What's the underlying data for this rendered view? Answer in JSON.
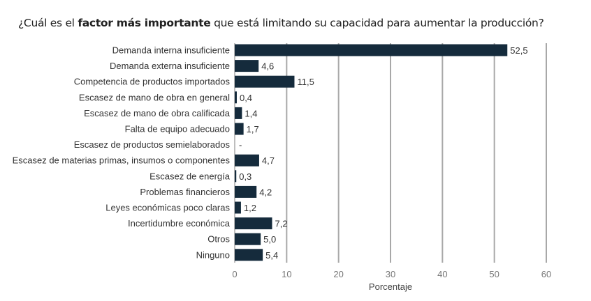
{
  "chart_data": {
    "type": "bar",
    "orientation": "horizontal",
    "title_parts": {
      "before": "¿Cuál es el ",
      "bold": "factor más importante",
      "after": " que está limitando su capacidad para aumentar la producción?"
    },
    "categories": [
      "Demanda interna insuficiente",
      "Demanda externa insuficiente",
      "Competencia de productos importados",
      "Escasez de mano de obra en general",
      "Escasez de mano de obra calificada",
      "Falta de equipo adecuado",
      "Escasez de productos semielaborados",
      "Escasez de materias primas, insumos o componentes",
      "Escasez de energía",
      "Problemas financieros",
      "Leyes económicas poco claras",
      "Incertidumbre económica",
      "Otros",
      "Ninguno"
    ],
    "values": [
      52.5,
      4.6,
      11.5,
      0.4,
      1.4,
      1.7,
      null,
      4.7,
      0.3,
      4.2,
      1.2,
      7.2,
      5.0,
      5.4
    ],
    "value_labels": [
      "52,5",
      "4,6",
      "11,5",
      "0,4",
      "1,4",
      "1,7",
      "-",
      "4,7",
      "0,3",
      "4,2",
      "1,2",
      "7,2",
      "5,0",
      "5,4"
    ],
    "xlabel": "Porcentaje",
    "ylabel": "",
    "xlim": [
      0,
      60
    ],
    "xticks": [
      "0",
      "10",
      "20",
      "30",
      "40",
      "50",
      "60"
    ],
    "grid": true,
    "bar_color": "#152b3c",
    "grid_color": "#a8a8a8"
  }
}
